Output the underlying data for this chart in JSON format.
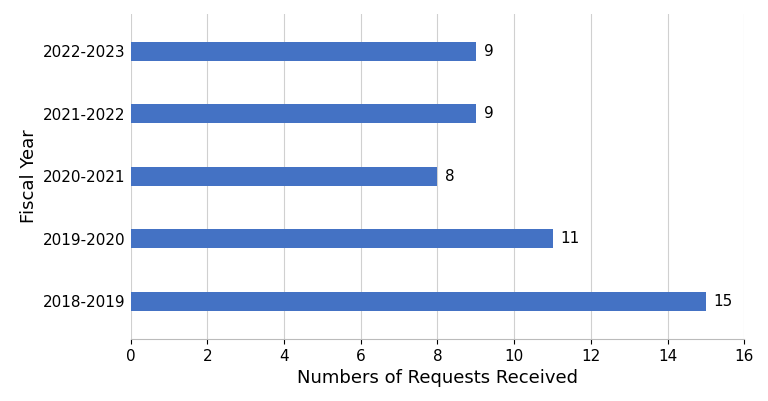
{
  "categories": [
    "2018-2019",
    "2019-2020",
    "2020-2021",
    "2021-2022",
    "2022-2023"
  ],
  "values": [
    15,
    11,
    8,
    9,
    9
  ],
  "bar_color": "#4472C4",
  "xlabel": "Numbers of Requests Received",
  "ylabel": "Fiscal Year",
  "xlim": [
    0,
    16
  ],
  "xticks": [
    0,
    2,
    4,
    6,
    8,
    10,
    12,
    14,
    16
  ],
  "bar_height": 0.3,
  "annotation_fontsize": 11,
  "label_fontsize": 13,
  "tick_fontsize": 11,
  "background_color": "#ffffff",
  "grid_color": "#d0d0d0"
}
